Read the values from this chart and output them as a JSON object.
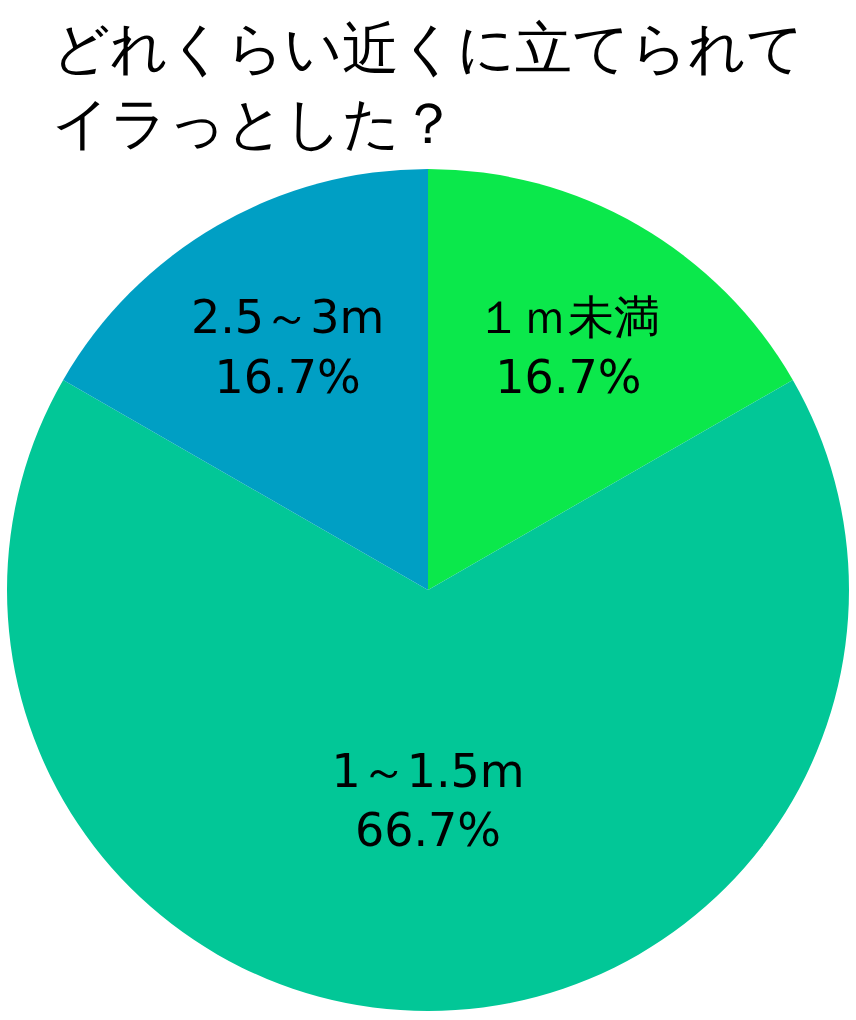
{
  "chart_data": {
    "type": "pie",
    "title": "どれくらい近くに立てられてイラっとした？",
    "categories": [
      "１ｍ未満",
      "1～1.5m",
      "2.5～3m"
    ],
    "values": [
      16.7,
      66.7,
      16.7
    ],
    "value_labels": [
      "16.7%",
      "66.7%",
      "16.7%"
    ],
    "colors": [
      "#0be84b",
      "#02c797",
      "#009fc4"
    ]
  }
}
